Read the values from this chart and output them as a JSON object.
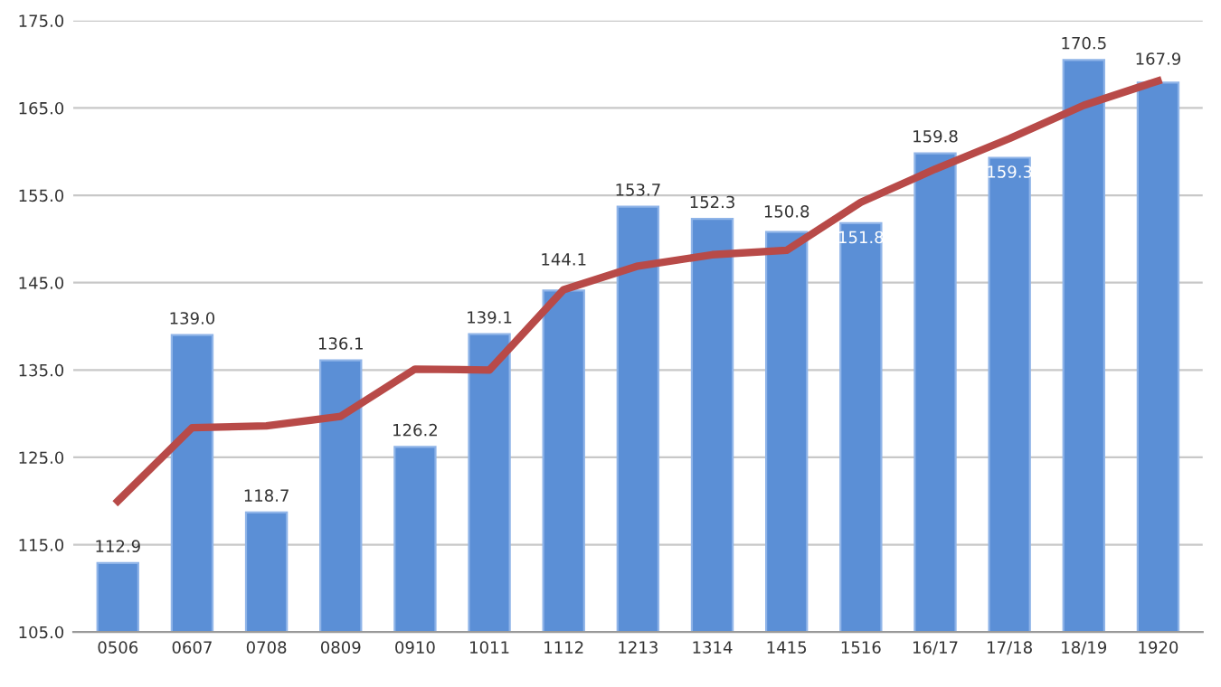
{
  "chart_data": {
    "type": "bar",
    "categories": [
      "0506",
      "0607",
      "0708",
      "0809",
      "0910",
      "1011",
      "1112",
      "1213",
      "1314",
      "1415",
      "1516",
      "16/17",
      "17/18",
      "18/19",
      "1920"
    ],
    "series": [
      {
        "color": "#5b8fd6",
        "values": [
          112.9,
          139.0,
          118.7,
          136.1,
          126.2,
          139.1,
          144.1,
          153.7,
          152.3,
          150.8,
          151.8,
          159.8,
          159.3,
          170.5,
          167.9
        ],
        "value_labels": [
          "112.9",
          "139.0",
          "118.7",
          "136.1",
          "126.2",
          "139.1",
          "144.1",
          "153.7",
          "152.3",
          "150.8",
          "151.8",
          "159.8",
          "159.3",
          "170.5",
          "167.9"
        ]
      },
      {
        "type": "line",
        "color": "#b84a48",
        "values": [
          120.0,
          128.4,
          128.6,
          129.7,
          135.1,
          135.0,
          144.2,
          146.9,
          148.2,
          148.7,
          154.2,
          158.0,
          161.5,
          165.3,
          168.1
        ]
      }
    ],
    "ylim": [
      105,
      175
    ],
    "yticks": [
      {
        "value": 105,
        "label": "105.0"
      },
      {
        "value": 115,
        "label": "115.0"
      },
      {
        "value": 125,
        "label": "125.0"
      },
      {
        "value": 135,
        "label": "135.0"
      },
      {
        "value": 145,
        "label": "145.0"
      },
      {
        "value": 155,
        "label": "155.0"
      },
      {
        "value": 165,
        "label": "165.0"
      },
      {
        "value": 175,
        "label": "175.0"
      }
    ],
    "grid": "y",
    "marker": "none",
    "line_style": "solid"
  }
}
